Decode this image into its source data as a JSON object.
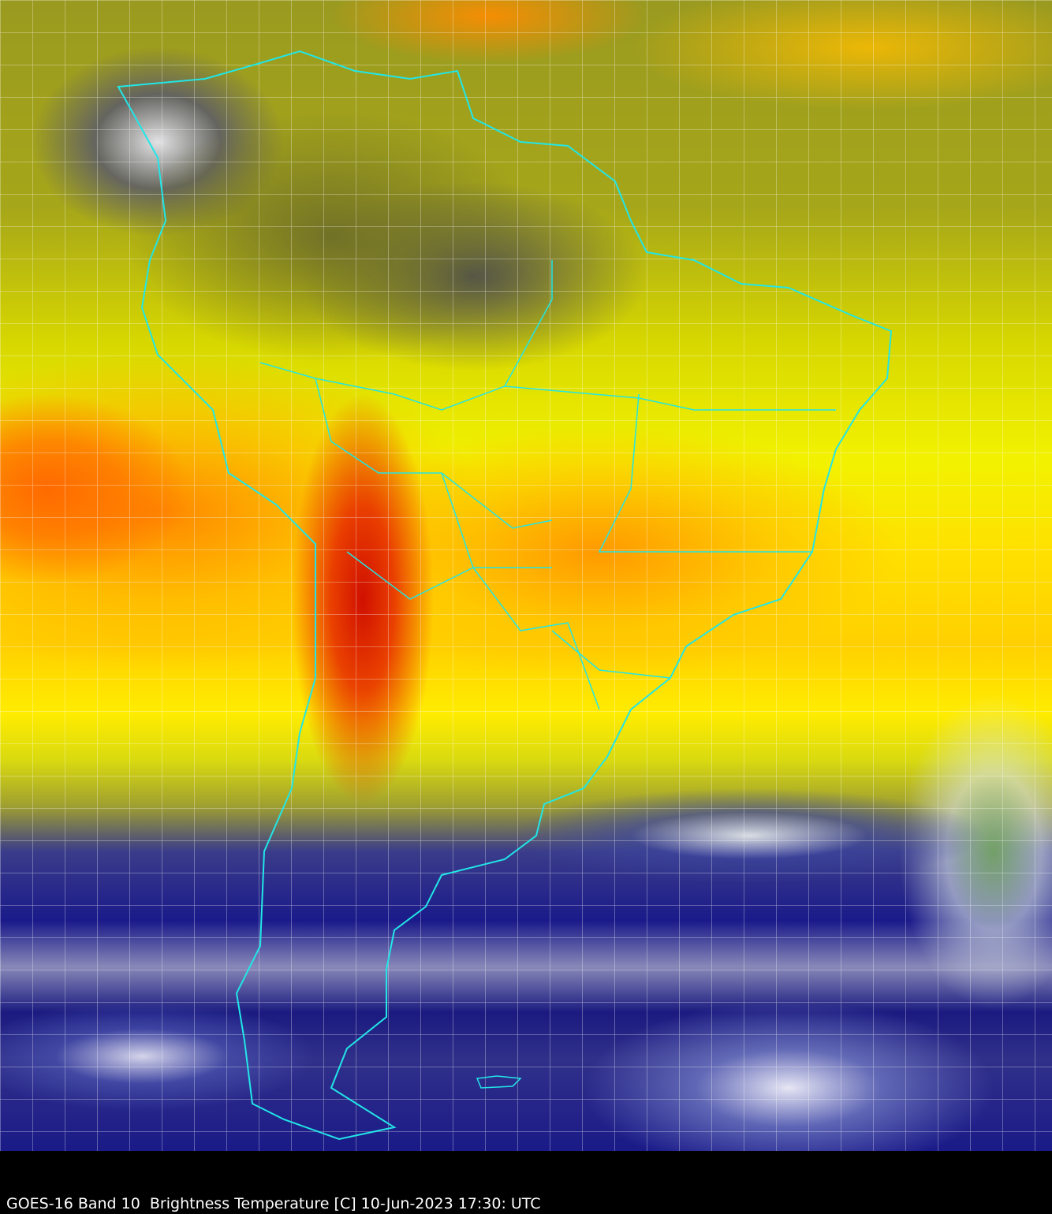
{
  "caption": "GOES-16 Band 10  Brightness Temperature [C] 10-Jun-2023 17:30: UTC",
  "colors": {
    "coastline": "#22e6e6",
    "grid": "#ffffff",
    "background": "#000000"
  }
}
